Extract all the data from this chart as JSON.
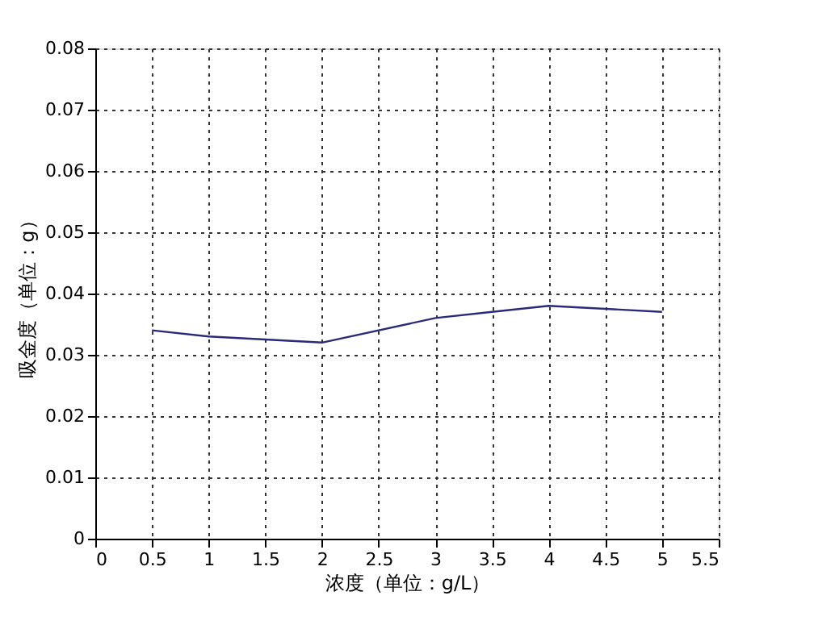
{
  "chart_data": {
    "type": "line",
    "xlabel": "浓度（单位：g/L）",
    "ylabel": "吸金度（单位：g）",
    "x": [
      0.5,
      1,
      2,
      3,
      3.5,
      4,
      5
    ],
    "series": [
      {
        "color": "#2a2a7a",
        "values": [
          0.034,
          0.033,
          0.032,
          0.036,
          0.037,
          0.038,
          0.037
        ]
      }
    ],
    "xlim": [
      0,
      5.5
    ],
    "xticks": [
      0,
      0.5,
      1,
      1.5,
      2,
      2.5,
      3,
      3.5,
      4,
      4.5,
      5,
      5.5
    ],
    "ylim": [
      0,
      0.08
    ],
    "yticks": [
      0,
      0.01,
      0.02,
      0.03,
      0.04,
      0.05,
      0.06,
      0.07,
      0.08
    ],
    "grid": true,
    "line_style": "solid",
    "marker": "none"
  }
}
